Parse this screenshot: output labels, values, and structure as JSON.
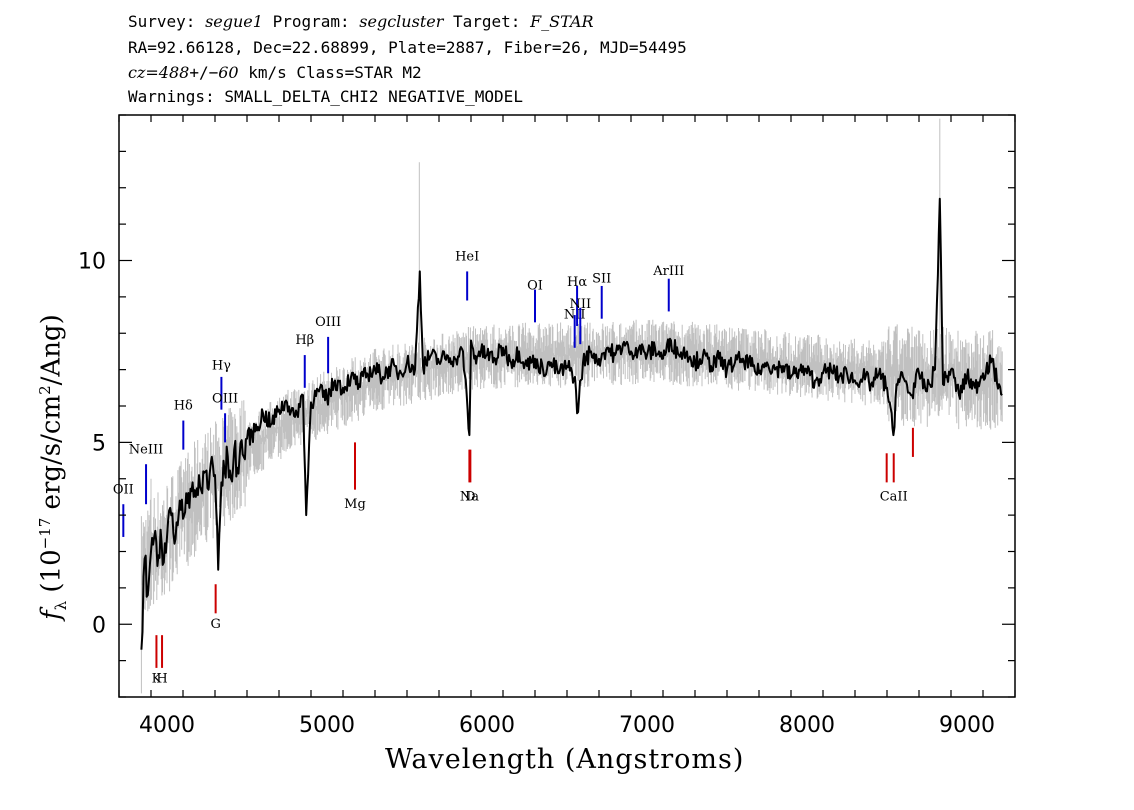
{
  "header": {
    "survey_label": "Survey:",
    "survey": "segue1",
    "program_label": "Program:",
    "program": "segcluster",
    "target_label": "Target:",
    "target": "F_STAR",
    "coords_line": "RA=92.66128, Dec=22.68899, Plate=2887, Fiber=26, MJD=54495",
    "cz_label": "cz=",
    "cz_value": "488",
    "cz_pm": "+/−",
    "cz_err": "60",
    "cz_rest": " km/s Class=STAR M2",
    "warnings_line": "Warnings: SMALL_DELTA_CHI2 NEGATIVE_MODEL"
  },
  "axes": {
    "xlabel": "Wavelength (Angstroms)",
    "ylabel_f": "f",
    "ylabel_sub": "λ",
    "ylabel_unit_a": " (10",
    "ylabel_exp": "−17",
    "ylabel_unit_b": " erg/s/cm",
    "ylabel_sq": "2",
    "ylabel_unit_c": "/Ang)"
  },
  "chart_data": {
    "type": "line",
    "xlim": [
      3700,
      9300
    ],
    "ylim": [
      -2,
      14
    ],
    "xticks": [
      4000,
      5000,
      6000,
      7000,
      8000,
      9000
    ],
    "yticks": [
      0,
      5,
      10
    ],
    "series": [
      {
        "role": "flux",
        "color": "#000000",
        "x": [
          3840,
          3860,
          3880,
          3900,
          3920,
          3940,
          3960,
          3980,
          4000,
          4020,
          4040,
          4060,
          4080,
          4100,
          4120,
          4140,
          4160,
          4180,
          4200,
          4220,
          4240,
          4260,
          4280,
          4300,
          4320,
          4340,
          4360,
          4380,
          4400,
          4420,
          4440,
          4460,
          4480,
          4500,
          4550,
          4600,
          4650,
          4700,
          4750,
          4800,
          4850,
          4870,
          4900,
          4950,
          5000,
          5050,
          5100,
          5150,
          5200,
          5250,
          5300,
          5350,
          5400,
          5450,
          5500,
          5550,
          5580,
          5600,
          5650,
          5700,
          5750,
          5800,
          5850,
          5890,
          5900,
          5920,
          5950,
          6000,
          6050,
          6100,
          6150,
          6200,
          6250,
          6300,
          6350,
          6400,
          6450,
          6500,
          6550,
          6563,
          6600,
          6650,
          6700,
          6750,
          6800,
          6850,
          6900,
          6950,
          7000,
          7050,
          7100,
          7150,
          7200,
          7250,
          7300,
          7350,
          7400,
          7450,
          7500,
          7550,
          7600,
          7650,
          7700,
          7750,
          7800,
          7850,
          7900,
          7950,
          8000,
          8050,
          8100,
          8150,
          8200,
          8250,
          8300,
          8350,
          8400,
          8450,
          8500,
          8540,
          8560,
          8600,
          8650,
          8700,
          8750,
          8800,
          8830,
          8850,
          8900,
          8950,
          9000,
          9050,
          9100,
          9150,
          9200,
          9220
        ],
        "y": [
          -0.7,
          1.8,
          0.8,
          2.0,
          2.4,
          1.6,
          2.6,
          1.7,
          2.4,
          3.2,
          2.5,
          2.8,
          3.4,
          2.9,
          3.6,
          3.2,
          3.9,
          3.5,
          4.1,
          3.6,
          4.2,
          3.7,
          4.6,
          4.1,
          1.5,
          3.9,
          4.2,
          4.6,
          4.0,
          4.8,
          4.3,
          5.0,
          4.6,
          5.1,
          5.3,
          5.8,
          5.5,
          5.9,
          6.1,
          5.7,
          6.3,
          3.0,
          6.1,
          6.4,
          6.2,
          6.7,
          6.5,
          6.8,
          6.6,
          6.9,
          7.0,
          6.8,
          7.1,
          6.9,
          7.2,
          7.0,
          9.7,
          7.1,
          7.4,
          7.2,
          7.4,
          7.3,
          7.5,
          5.2,
          7.8,
          7.3,
          7.5,
          7.4,
          7.3,
          7.6,
          7.2,
          7.5,
          7.1,
          7.3,
          7.0,
          7.2,
          6.9,
          7.1,
          6.8,
          5.8,
          7.2,
          7.5,
          7.3,
          7.6,
          7.4,
          7.7,
          7.5,
          7.6,
          7.4,
          7.6,
          7.3,
          7.8,
          7.4,
          7.5,
          7.2,
          7.4,
          7.1,
          7.3,
          7.0,
          7.2,
          7.3,
          7.1,
          6.9,
          7.2,
          7.0,
          7.1,
          6.8,
          7.0,
          6.9,
          6.7,
          6.9,
          7.0,
          6.8,
          6.9,
          6.7,
          6.8,
          6.6,
          6.9,
          6.5,
          5.2,
          6.6,
          6.8,
          6.3,
          6.9,
          6.4,
          7.0,
          11.7,
          6.6,
          7.0,
          6.3,
          6.8,
          6.5,
          6.9,
          7.2,
          6.6,
          6.3
        ]
      },
      {
        "role": "model",
        "color": "#c0c0c0",
        "x": [
          3840,
          3900,
          3960,
          4000,
          4050,
          4100,
          4150,
          4200,
          4250,
          4300,
          4350,
          4400,
          4450,
          4500,
          4600,
          4700,
          4800,
          4900,
          5000,
          5100,
          5200,
          5300,
          5400,
          5500,
          5600,
          5700,
          5800,
          5900,
          6000,
          6200,
          6400,
          6600,
          6800,
          7000,
          7200,
          7400,
          7600,
          7800,
          8000,
          8200,
          8400,
          8600,
          8800,
          9000,
          9220
        ],
        "y": [
          1.5,
          2.0,
          2.2,
          2.4,
          2.7,
          3.0,
          3.3,
          3.6,
          3.8,
          4.0,
          4.2,
          4.4,
          4.6,
          4.8,
          5.1,
          5.4,
          5.7,
          5.9,
          6.1,
          6.3,
          6.5,
          6.7,
          6.8,
          6.9,
          7.0,
          7.1,
          7.2,
          7.3,
          7.35,
          7.4,
          7.4,
          7.4,
          7.45,
          7.5,
          7.45,
          7.4,
          7.3,
          7.2,
          7.1,
          7.0,
          6.9,
          6.85,
          6.8,
          6.75,
          6.7
        ]
      }
    ],
    "annotations": [
      {
        "label": "OII",
        "wavelength": 3727,
        "color": "#0000cc",
        "label_y": 3.6,
        "tick": [
          2.4,
          3.3
        ]
      },
      {
        "label": "NeIII",
        "wavelength": 3869,
        "color": "#0000cc",
        "label_y": 4.7,
        "tick": [
          3.3,
          4.4
        ]
      },
      {
        "label": "Hδ",
        "wavelength": 4102,
        "color": "#0000cc",
        "label_y": 5.9,
        "tick": [
          4.8,
          5.6
        ]
      },
      {
        "label": "Hγ",
        "wavelength": 4340,
        "color": "#0000cc",
        "label_y": 7.0,
        "tick": [
          5.9,
          6.8
        ]
      },
      {
        "label": "OIII",
        "wavelength": 4363,
        "color": "#0000cc",
        "label_y": 6.1,
        "tick": [
          5.0,
          5.8
        ]
      },
      {
        "label": "Hβ",
        "wavelength": 4861,
        "color": "#0000cc",
        "label_y": 7.7,
        "tick": [
          6.5,
          7.4
        ]
      },
      {
        "label": "OIII",
        "wavelength": 5007,
        "color": "#0000cc",
        "label_y": 8.2,
        "tick": [
          6.9,
          7.9
        ]
      },
      {
        "label": "HeI",
        "wavelength": 5876,
        "color": "#0000cc",
        "label_y": 10.0,
        "tick": [
          8.9,
          9.7
        ]
      },
      {
        "label": "OI",
        "wavelength": 6300,
        "color": "#0000cc",
        "label_y": 9.2,
        "tick": [
          8.3,
          9.2
        ]
      },
      {
        "label": "NII",
        "wavelength": 6548,
        "color": "#0000cc",
        "label_y": 8.4,
        "tick": [
          7.6,
          8.5
        ]
      },
      {
        "label": "Hα",
        "wavelength": 6563,
        "color": "#0000cc",
        "label_y": 9.3,
        "tick": [
          8.2,
          9.3
        ]
      },
      {
        "label": "NII",
        "wavelength": 6583,
        "color": "#0000cc",
        "label_y": 8.7,
        "tick": [
          7.7,
          8.7
        ]
      },
      {
        "label": "SII",
        "wavelength": 6717,
        "color": "#0000cc",
        "label_y": 9.4,
        "tick": [
          8.4,
          9.3
        ]
      },
      {
        "label": "ArIII",
        "wavelength": 7136,
        "color": "#0000cc",
        "label_y": 9.6,
        "tick": [
          8.6,
          9.5
        ]
      },
      {
        "label": "K",
        "wavelength": 3934,
        "color": "#cc0000",
        "label_y": -1.6,
        "tick": [
          -0.3,
          -1.2
        ]
      },
      {
        "label": "H",
        "wavelength": 3969,
        "color": "#cc0000",
        "label_y": -1.6,
        "tick": [
          -0.3,
          -1.2
        ]
      },
      {
        "label": "G",
        "wavelength": 4304,
        "color": "#cc0000",
        "label_y": -0.1,
        "tick": [
          1.1,
          0.3
        ]
      },
      {
        "label": "Mg",
        "wavelength": 5175,
        "color": "#cc0000",
        "label_y": 3.2,
        "tick": [
          5.0,
          3.7
        ]
      },
      {
        "label": "Na",
        "wavelength": 5890,
        "color": "#cc0000",
        "label_y": 3.4,
        "tick": [
          4.8,
          3.9
        ]
      },
      {
        "label": "D",
        "wavelength": 5896,
        "color": "#cc0000",
        "label_y": 3.4,
        "tick": [
          4.8,
          3.9
        ]
      },
      {
        "label": "CaII",
        "wavelength": 8542,
        "color": "#cc0000",
        "label_y": 3.4,
        "tick": [
          4.7,
          3.9
        ]
      },
      {
        "label": "CaII",
        "wavelength": 8498,
        "color": "#cc0000",
        "label_y": null,
        "tick": [
          4.7,
          3.9
        ]
      },
      {
        "label": "CaII",
        "wavelength": 8662,
        "color": "#cc0000",
        "label_y": null,
        "tick": [
          5.4,
          4.6
        ]
      }
    ]
  }
}
